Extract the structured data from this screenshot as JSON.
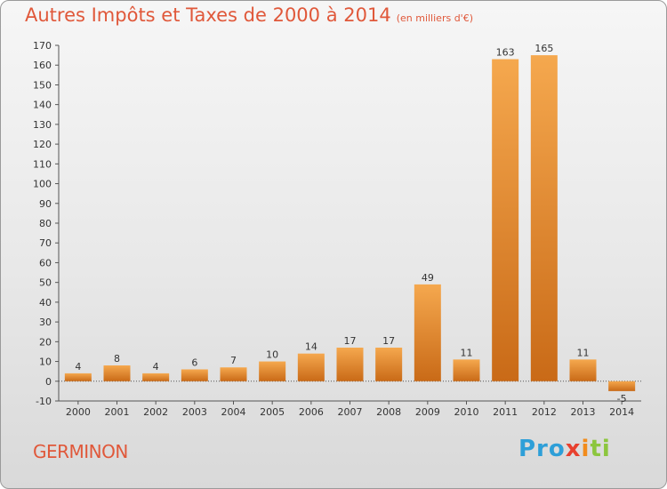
{
  "title": "Autres Impôts et Taxes de 2000 à 2014",
  "unit_note": "(en milliers d'€)",
  "commune": "GERMINON",
  "logo": {
    "p": "Pro",
    "x": "x",
    "i": "i",
    "t": "ti"
  },
  "colors": {
    "bar_light": "#f5a84e",
    "bar_dark": "#c96a17",
    "axis": "#555555",
    "grid": "#333333",
    "title": "#e0583a"
  },
  "chart_data": {
    "type": "bar",
    "categories": [
      "2000",
      "2001",
      "2002",
      "2003",
      "2004",
      "2005",
      "2006",
      "2007",
      "2008",
      "2009",
      "2010",
      "2011",
      "2012",
      "2013",
      "2014"
    ],
    "values": [
      4,
      8,
      4,
      6,
      7,
      10,
      14,
      17,
      17,
      49,
      11,
      163,
      165,
      11,
      -5
    ],
    "value_labels": [
      "4",
      "8",
      "4",
      "6",
      "7",
      "10",
      "14",
      "17",
      "17",
      "49",
      "11",
      "163",
      "165",
      "11",
      "-5"
    ],
    "ylim": [
      -10,
      170
    ],
    "yticks": [
      -10,
      0,
      10,
      20,
      30,
      40,
      50,
      60,
      70,
      80,
      90,
      100,
      110,
      120,
      130,
      140,
      150,
      160,
      170
    ],
    "ytick_labels": [
      "-10",
      "0",
      "10",
      "20",
      "30",
      "40",
      "50",
      "60",
      "70",
      "80",
      "90",
      "100",
      "110",
      "120",
      "130",
      "140",
      "150",
      "160",
      "170"
    ],
    "grid": false,
    "legend": "none"
  }
}
